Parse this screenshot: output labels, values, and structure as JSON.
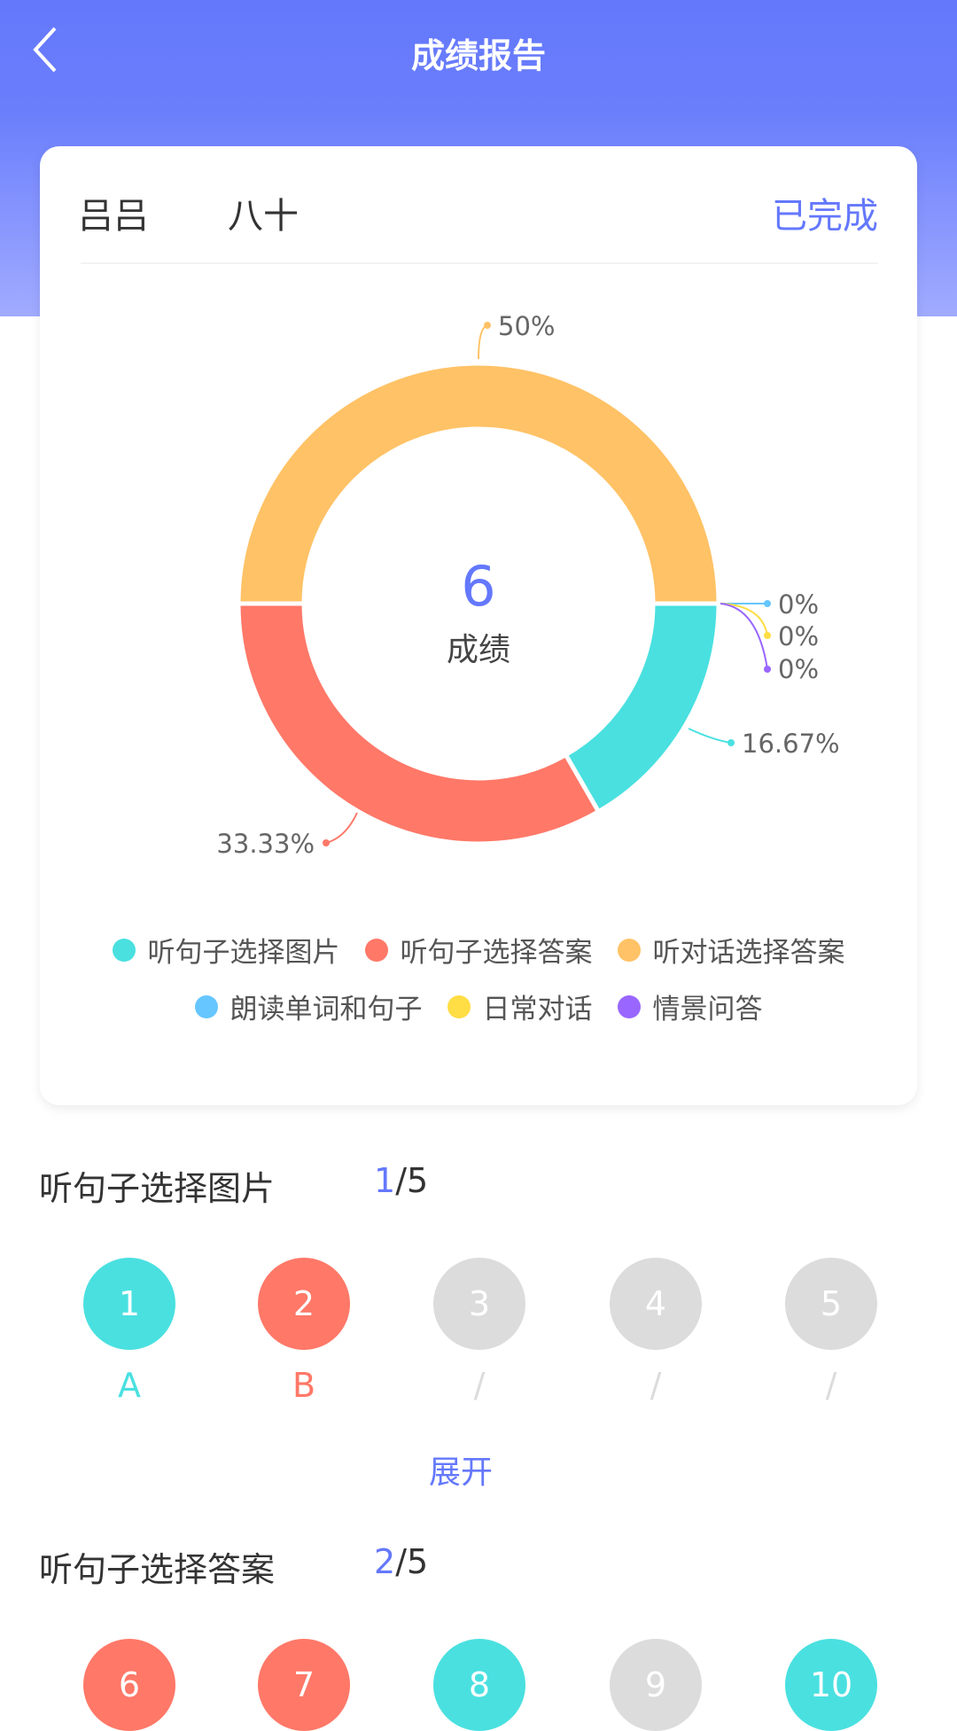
{
  "header": {
    "title": "成绩报告",
    "back_icon": "chevron-left-icon"
  },
  "card": {
    "student_name": "吕吕",
    "class_name": "八十",
    "status": "已完成"
  },
  "colors": {
    "accent": "#6478fc",
    "correct": "#4ae0e0",
    "wrong": "#ff7868",
    "unanswered": "#dcdcdc"
  },
  "chart_data": {
    "type": "pie",
    "variant": "donut",
    "center_value": "6",
    "center_label": "成绩",
    "legend_position": "bottom",
    "slices": [
      {
        "name": "听句子选择图片",
        "value": 16.67,
        "label": "16.67%",
        "color": "#4ae0e0"
      },
      {
        "name": "听句子选择答案",
        "value": 33.33,
        "label": "33.33%",
        "color": "#ff7868"
      },
      {
        "name": "听对话选择答案",
        "value": 50,
        "label": "50%",
        "color": "#ffc266"
      },
      {
        "name": "朗读单词和句子",
        "value": 0,
        "label": "0%",
        "color": "#66c6ff"
      },
      {
        "name": "日常对话",
        "value": 0,
        "label": "0%",
        "color": "#ffdd44"
      },
      {
        "name": "情景问答",
        "value": 0,
        "label": "0%",
        "color": "#9966ff"
      }
    ]
  },
  "sections": [
    {
      "title": "听句子选择图片",
      "correct": "1",
      "total": "/5",
      "expand_label": "展开",
      "questions": [
        {
          "n": "1",
          "a": "A",
          "s": "correct"
        },
        {
          "n": "2",
          "a": "B",
          "s": "wrong"
        },
        {
          "n": "3",
          "a": "/",
          "s": "unanswered"
        },
        {
          "n": "4",
          "a": "/",
          "s": "unanswered"
        },
        {
          "n": "5",
          "a": "/",
          "s": "unanswered"
        }
      ]
    },
    {
      "title": "听句子选择答案",
      "correct": "2",
      "total": "/5",
      "questions": [
        {
          "n": "6",
          "s": "wrong"
        },
        {
          "n": "7",
          "s": "wrong"
        },
        {
          "n": "8",
          "s": "correct"
        },
        {
          "n": "9",
          "s": "unanswered"
        },
        {
          "n": "10",
          "s": "correct"
        }
      ]
    }
  ]
}
